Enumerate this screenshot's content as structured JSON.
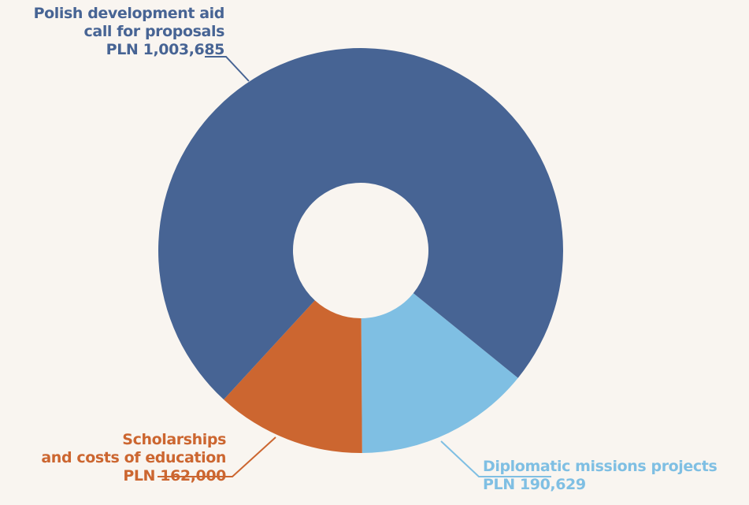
{
  "chart_data": {
    "type": "pie",
    "donut": true,
    "currency": "PLN",
    "slices": [
      {
        "label_lines": [
          "Polish development aid",
          "call for proposals"
        ],
        "value_text": "PLN 1,003,685",
        "value": 1003685,
        "color": "#476494"
      },
      {
        "label_lines": [
          "Diplomatic missions projects"
        ],
        "value_text": "PLN 190,629",
        "value": 190629,
        "color": "#7fbfe3"
      },
      {
        "label_lines": [
          "Scholarships",
          "and costs of education"
        ],
        "value_text": "PLN 162,000",
        "value": 162000,
        "color": "#cc6630"
      }
    ],
    "background": "#f9f5f0"
  }
}
